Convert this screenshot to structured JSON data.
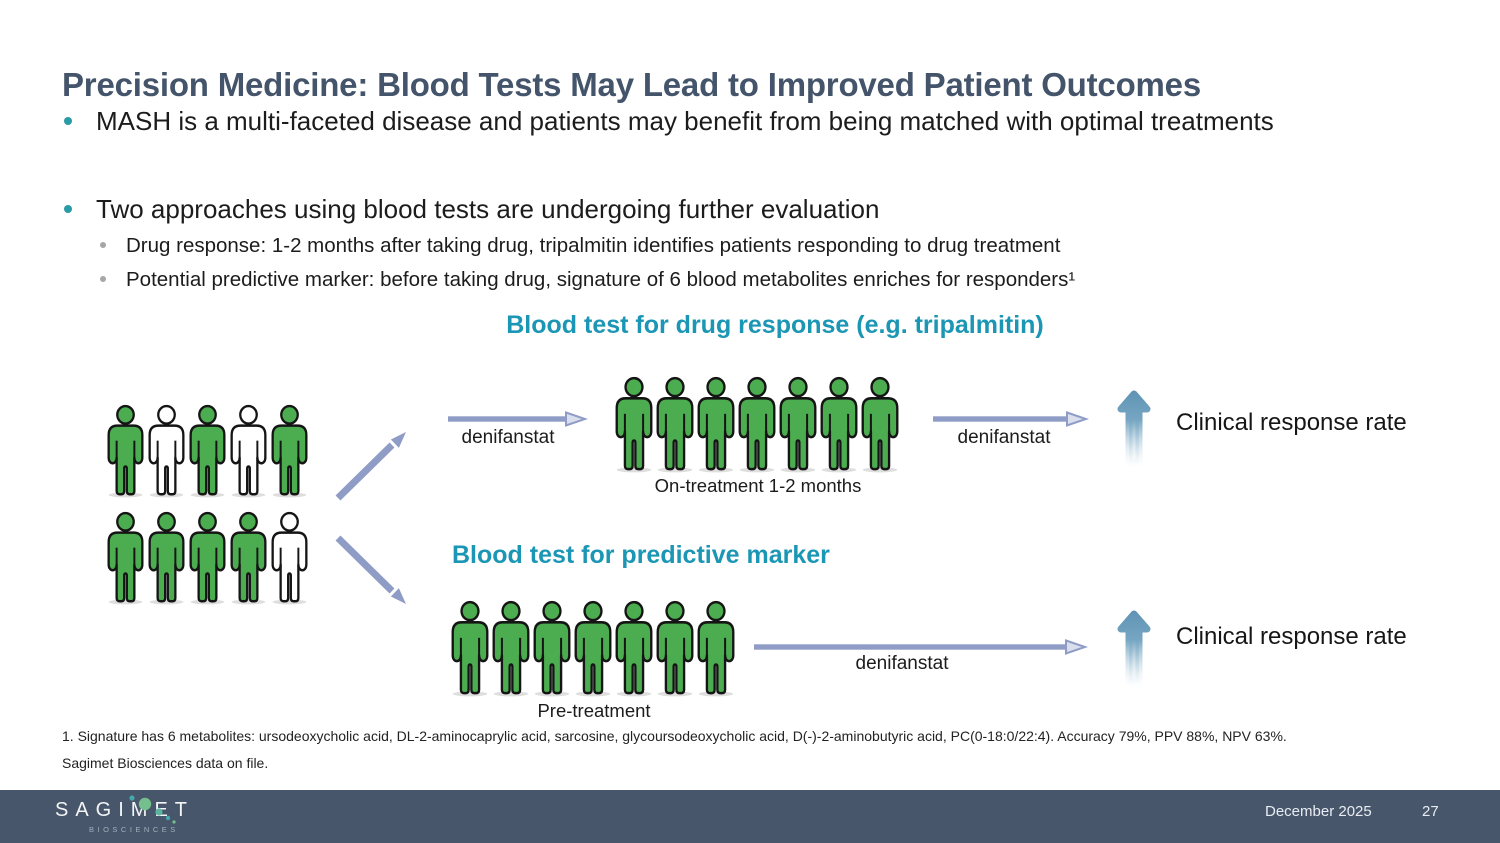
{
  "slide": {
    "title": "Precision Medicine: Blood Tests May Lead to Improved Patient Outcomes",
    "bullets": [
      {
        "text": "MASH is a multi-faceted disease and patients may benefit from being matched with optimal treatments"
      },
      {
        "text": "Two approaches using blood tests are undergoing further evaluation"
      }
    ],
    "sub_bullets": [
      {
        "text": "Drug response: 1-2 months after taking drug, tripalmitin identifies patients responding to drug treatment"
      },
      {
        "text": "Potential predictive marker: before taking drug, signature of 6 blood metabolites enriches for responders¹"
      }
    ]
  },
  "diagram": {
    "population_rows": [
      [
        "green",
        "white",
        "green",
        "white",
        "green"
      ],
      [
        "green",
        "green",
        "green",
        "green",
        "white"
      ]
    ],
    "top_flow": {
      "heading": "Blood test for drug response (e.g. tripalmitin)",
      "arrow1_label": "denifanstat",
      "cohort": [
        "green",
        "green",
        "green",
        "green",
        "green",
        "green",
        "green"
      ],
      "cohort_label": "On-treatment 1-2 months",
      "arrow2_label": "denifanstat",
      "outcome": "Clinical response rate"
    },
    "bottom_flow": {
      "heading": "Blood test for predictive marker",
      "cohort": [
        "green",
        "green",
        "green",
        "green",
        "green",
        "green",
        "green"
      ],
      "cohort_label": "Pre-treatment",
      "arrow_label": "denifanstat",
      "outcome": "Clinical response rate"
    }
  },
  "footnotes": [
    "1. Signature has 6 metabolites: ursodeoxycholic acid, DL-2-aminocaprylic acid, sarcosine, glycoursodeoxycholic acid, D(-)-2-aminobutyric acid, PC(0-18:0/22:4). Accuracy 79%, PPV 88%, NPV 63%.",
    "Sagimet Biosciences data on file."
  ],
  "footer": {
    "logo": "SAGIMET",
    "logo_sub": "BIOSCIENCES",
    "date": "December 2025",
    "page": "27"
  },
  "colors": {
    "title": "#44546A",
    "teal_heading": "#1b96b4",
    "teal_bullet": "#2d9aa8",
    "person_green": "#4bad4f",
    "person_white": "#ffffff",
    "arrow_periwinkle": "#8f9cc6",
    "big_arrow_blue": "#5d91b3",
    "footer_bg": "#47566a"
  }
}
